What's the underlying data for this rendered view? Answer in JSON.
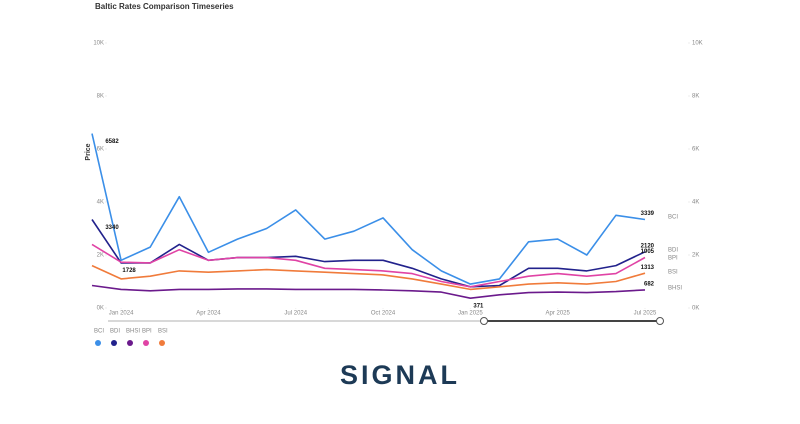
{
  "chart_data": {
    "type": "line",
    "title": "Baltic Rates Comparison Timeseries",
    "y_label": "Price",
    "x": [
      "2023-12",
      "2024-01",
      "2024-02",
      "2024-03",
      "2024-04",
      "2024-05",
      "2024-06",
      "2024-07",
      "2024-08",
      "2024-09",
      "2024-10",
      "2024-11",
      "2024-12",
      "2025-01",
      "2025-02",
      "2025-03",
      "2025-04",
      "2025-05",
      "2025-06",
      "2025-07"
    ],
    "xlim": [
      "2023-12",
      "2025-07"
    ],
    "xticks": [
      {
        "value": "2024-01",
        "label": "Jan 2024"
      },
      {
        "value": "2024-04",
        "label": "Apr 2024"
      },
      {
        "value": "2024-07",
        "label": "Jul 2024"
      },
      {
        "value": "2024-10",
        "label": "Oct 2024"
      },
      {
        "value": "2025-01",
        "label": "Jan 2025"
      },
      {
        "value": "2025-04",
        "label": "Apr 2025"
      },
      {
        "value": "2025-07",
        "label": "Jul 2025"
      }
    ],
    "ylim": [
      0,
      10000
    ],
    "yticks": [
      {
        "value": 0,
        "label": "0K"
      },
      {
        "value": 2000,
        "label": "2K"
      },
      {
        "value": 4000,
        "label": "4K"
      },
      {
        "value": 6000,
        "label": "6K"
      },
      {
        "value": 8000,
        "label": "8K"
      },
      {
        "value": 10000,
        "label": "10K"
      }
    ],
    "y2lim": [
      0,
      10000
    ],
    "y2ticks": [
      {
        "value": 0,
        "label": "0K"
      },
      {
        "value": 2000,
        "label": "2K"
      },
      {
        "value": 4000,
        "label": "4K"
      },
      {
        "value": 6000,
        "label": "6K"
      },
      {
        "value": 8000,
        "label": "8K"
      },
      {
        "value": 10000,
        "label": "10K"
      }
    ],
    "grid": false,
    "legend": "bottom-left",
    "series": [
      {
        "name": "BCI",
        "color": "#3b8fe8",
        "values": [
          6582,
          1800,
          2300,
          4200,
          2100,
          2600,
          3000,
          3700,
          2600,
          2900,
          3400,
          2200,
          1400,
          900,
          1100,
          2500,
          2600,
          2000,
          3500,
          3339
        ]
      },
      {
        "name": "BDI",
        "color": "#22228c",
        "values": [
          3340,
          1700,
          1700,
          2400,
          1800,
          1900,
          1900,
          1950,
          1750,
          1800,
          1800,
          1500,
          1100,
          800,
          850,
          1500,
          1500,
          1400,
          1600,
          2120
        ]
      },
      {
        "name": "BHSI",
        "color": "#6b1a8c",
        "values": [
          850,
          700,
          650,
          700,
          700,
          720,
          720,
          700,
          700,
          700,
          680,
          650,
          600,
          371,
          500,
          580,
          600,
          580,
          620,
          682
        ]
      },
      {
        "name": "BPI",
        "color": "#e043a5",
        "values": [
          2400,
          1728,
          1700,
          2200,
          1800,
          1900,
          1900,
          1800,
          1500,
          1450,
          1400,
          1300,
          1000,
          800,
          1000,
          1200,
          1300,
          1200,
          1300,
          1905
        ]
      },
      {
        "name": "BSI",
        "color": "#f07b3b",
        "values": [
          1600,
          1100,
          1200,
          1400,
          1350,
          1400,
          1450,
          1400,
          1350,
          1300,
          1250,
          1100,
          900,
          700,
          800,
          900,
          950,
          900,
          1000,
          1313
        ]
      }
    ]
  },
  "brand": "SIGNAL"
}
